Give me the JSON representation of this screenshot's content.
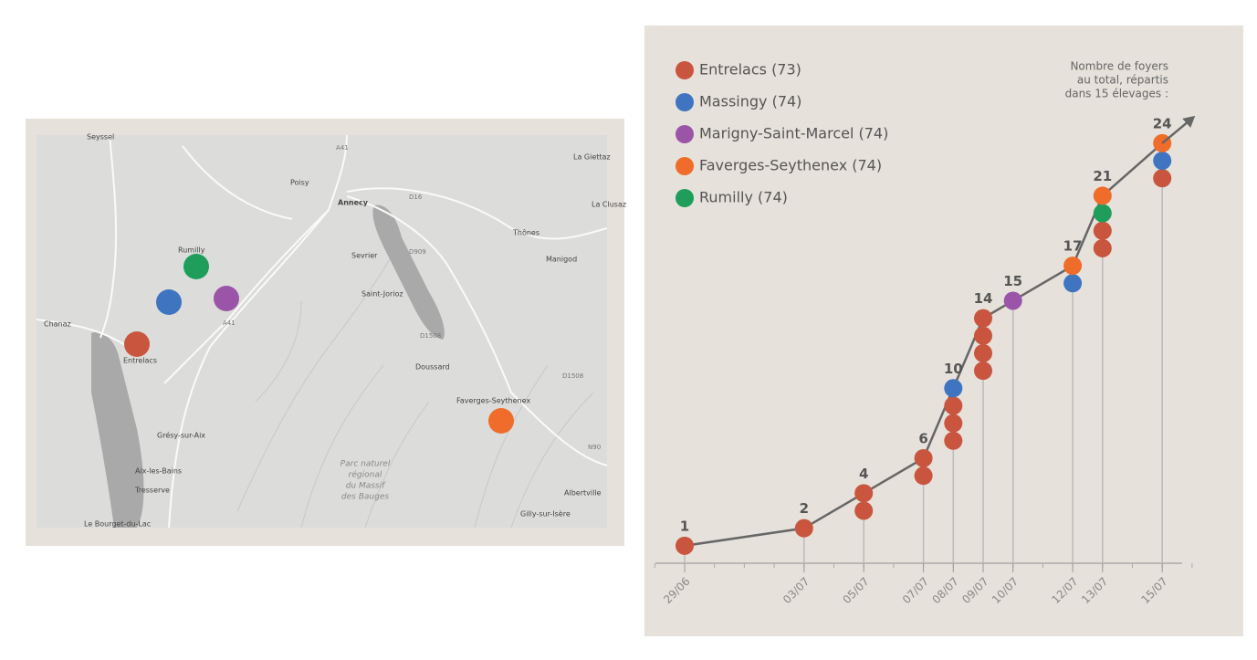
{
  "map": {
    "places": [
      "Seyssel",
      "Poisy",
      "Annecy",
      "Rumilly",
      "Sevrier",
      "Saint-Jorioz",
      "Thônes",
      "Manigod",
      "Chanaz",
      "Entrelacs",
      "Doussard",
      "Faverges-Seythenex",
      "Grésy-sur-Aix",
      "Aix-les-Bains",
      "Tresserve",
      "Le Bourget-du-Lac",
      "Albertville",
      "Gilly-sur-Isère",
      "La Giettaz",
      "La Clusaz"
    ],
    "roads": [
      "A41",
      "D16",
      "D909",
      "D1508",
      "A41",
      "D1508",
      "N90"
    ],
    "park": [
      "Parc naturel",
      "régional",
      "du Massif",
      "des Bauges"
    ]
  },
  "chart_data": {
    "type": "line",
    "annotation": [
      "Nombre de foyers",
      "au total, répartis",
      "dans 15 élevages :"
    ],
    "x": [
      "29/06",
      "03/07",
      "05/07",
      "07/07",
      "08/07",
      "09/07",
      "10/07",
      "12/07",
      "13/07",
      "15/07"
    ],
    "values": [
      1,
      2,
      4,
      6,
      10,
      14,
      15,
      17,
      21,
      24
    ],
    "line_color": "#666666",
    "series": [
      {
        "name": "Entrelacs (73)",
        "color": "#c9553f",
        "values": [
          1,
          1,
          2,
          2,
          3,
          4,
          0,
          0,
          2,
          1
        ]
      },
      {
        "name": "Massingy (74)",
        "color": "#3f74c0",
        "values": [
          0,
          0,
          0,
          0,
          1,
          0,
          0,
          1,
          0,
          1
        ]
      },
      {
        "name": "Marigny-Saint-Marcel (74)",
        "color": "#9b55a8",
        "values": [
          0,
          0,
          0,
          0,
          0,
          0,
          1,
          0,
          0,
          0
        ]
      },
      {
        "name": "Faverges-Seythenex (74)",
        "color": "#ef6c2a",
        "values": [
          0,
          0,
          0,
          0,
          0,
          0,
          0,
          1,
          1,
          1
        ]
      },
      {
        "name": "Rumilly (74)",
        "color": "#1e9e5a",
        "values": [
          0,
          0,
          0,
          0,
          0,
          0,
          0,
          0,
          1,
          0
        ]
      }
    ]
  }
}
